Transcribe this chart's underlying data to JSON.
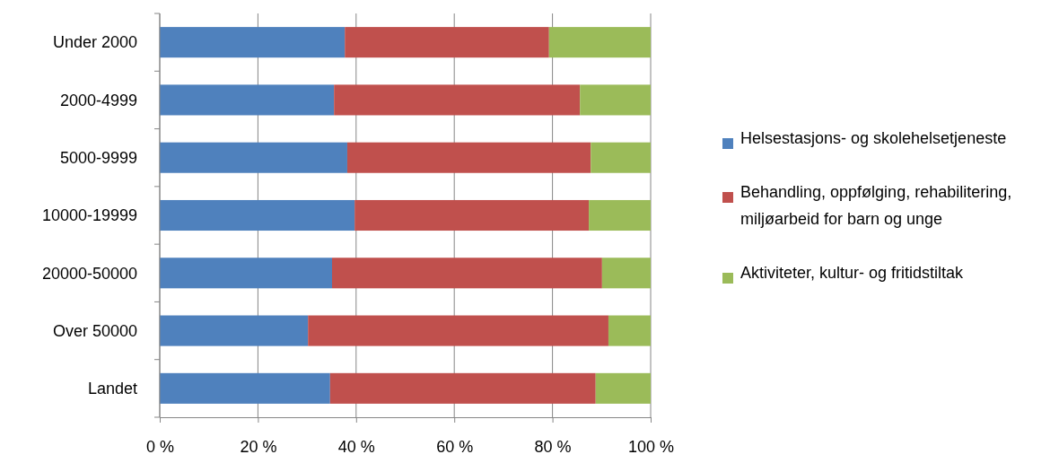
{
  "chart_data": {
    "type": "bar",
    "orientation": "horizontal",
    "stacked": true,
    "categories": [
      "Under 2000",
      "2000-4999",
      "5000-9999",
      "10000-19999",
      "20000-50000",
      "Over 50000",
      "Landet"
    ],
    "series": [
      {
        "name": "Helsestasjons- og skolehelsetjeneste",
        "color": "#4f81bd",
        "values": [
          37.7,
          35.5,
          38.2,
          39.7,
          35.1,
          30.2,
          34.7
        ]
      },
      {
        "name": "Behandling, oppfølging, rehabilitering, miljøarbeid for barn og unge",
        "color": "#c0504d",
        "values": [
          41.6,
          50.1,
          49.6,
          47.7,
          55.0,
          61.2,
          54.1
        ]
      },
      {
        "name": "Aktiviteter, kultur- og fritidstiltak",
        "color": "#9bbb59",
        "values": [
          20.7,
          14.4,
          12.2,
          12.6,
          9.9,
          8.6,
          11.2
        ]
      }
    ],
    "xlim": [
      0,
      100
    ],
    "xticks": [
      {
        "value": 0,
        "label": "0 %"
      },
      {
        "value": 20,
        "label": "20 %"
      },
      {
        "value": 40,
        "label": "40 %"
      },
      {
        "value": 60,
        "label": "60 %"
      },
      {
        "value": 80,
        "label": "80 %"
      },
      {
        "value": 100,
        "label": "100 %"
      }
    ],
    "grid": "x",
    "legend": "right"
  }
}
